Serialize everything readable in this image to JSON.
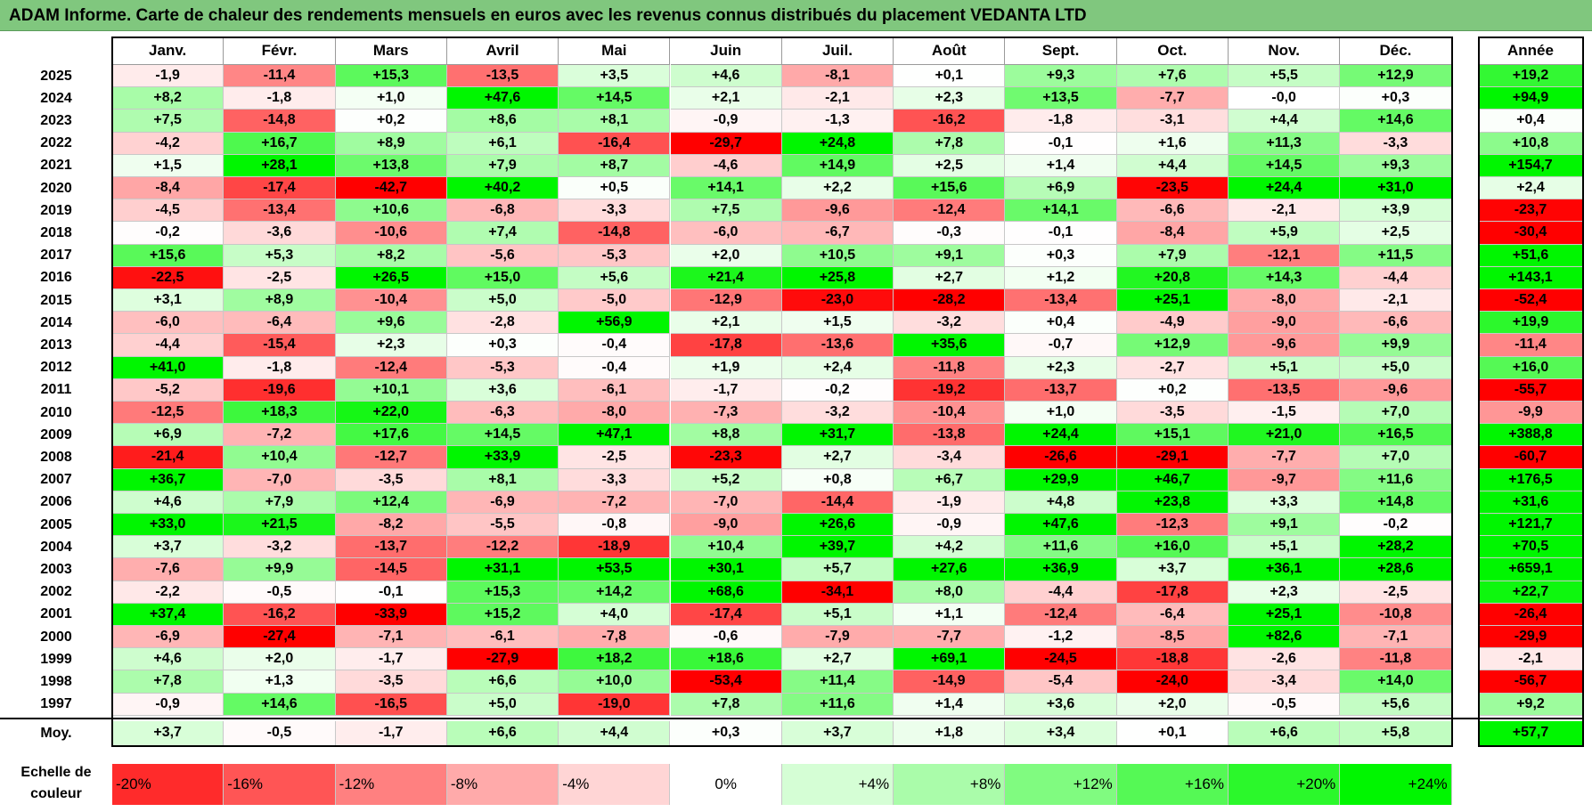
{
  "title": "ADAM Informe. Carte de chaleur des rendements mensuels en euros avec les revenus connus distribués du placement VEDANTA LTD",
  "year_header": "Année",
  "avg_label": "Moy.",
  "legend_title_line1": "Echelle de",
  "legend_title_line2": "couleur",
  "colors": {
    "max_red": "#ff0000",
    "max_green": "#00e600",
    "neutral": "#ffffff",
    "title_bg": "#80c77e"
  },
  "chart_data": {
    "type": "heatmap",
    "title": "ADAM Informe. Carte de chaleur des rendements mensuels en euros avec les revenus connus distribués du placement VEDANTA LTD",
    "months": [
      "Janv.",
      "Févr.",
      "Mars",
      "Avril",
      "Mai",
      "Juin",
      "Juil.",
      "Août",
      "Sept.",
      "Oct.",
      "Nov.",
      "Déc."
    ],
    "rows": [
      {
        "year": "2025",
        "values": [
          "-1,9",
          "-11,4",
          "+15,3",
          "-13,5",
          "+3,5",
          "+4,6",
          "-8,1",
          "+0,1",
          "+9,3",
          "+7,6",
          "+5,5",
          "+12,9"
        ],
        "annual": "+19,2"
      },
      {
        "year": "2024",
        "values": [
          "+8,2",
          "-1,8",
          "+1,0",
          "+47,6",
          "+14,5",
          "+2,1",
          "-2,1",
          "+2,3",
          "+13,5",
          "-7,7",
          "-0,0",
          "+0,3"
        ],
        "annual": "+94,9"
      },
      {
        "year": "2023",
        "values": [
          "+7,5",
          "-14,8",
          "+0,2",
          "+8,6",
          "+8,1",
          "-0,9",
          "-1,3",
          "-16,2",
          "-1,8",
          "-3,1",
          "+4,4",
          "+14,6"
        ],
        "annual": "+0,4"
      },
      {
        "year": "2022",
        "values": [
          "-4,2",
          "+16,7",
          "+8,9",
          "+6,1",
          "-16,4",
          "-29,7",
          "+24,8",
          "+7,8",
          "-0,1",
          "+1,6",
          "+11,3",
          "-3,3"
        ],
        "annual": "+10,8"
      },
      {
        "year": "2021",
        "values": [
          "+1,5",
          "+28,1",
          "+13,8",
          "+7,9",
          "+8,7",
          "-4,6",
          "+14,9",
          "+2,5",
          "+1,4",
          "+4,4",
          "+14,5",
          "+9,3"
        ],
        "annual": "+154,7"
      },
      {
        "year": "2020",
        "values": [
          "-8,4",
          "-17,4",
          "-42,7",
          "+40,2",
          "+0,5",
          "+14,1",
          "+2,2",
          "+15,6",
          "+6,9",
          "-23,5",
          "+24,4",
          "+31,0"
        ],
        "annual": "+2,4"
      },
      {
        "year": "2019",
        "values": [
          "-4,5",
          "-13,4",
          "+10,6",
          "-6,8",
          "-3,3",
          "+7,5",
          "-9,6",
          "-12,4",
          "+14,1",
          "-6,6",
          "-2,1",
          "+3,9"
        ],
        "annual": "-23,7"
      },
      {
        "year": "2018",
        "values": [
          "-0,2",
          "-3,6",
          "-10,6",
          "+7,4",
          "-14,8",
          "-6,0",
          "-6,7",
          "-0,3",
          "-0,1",
          "-8,4",
          "+5,9",
          "+2,5"
        ],
        "annual": "-30,4"
      },
      {
        "year": "2017",
        "values": [
          "+15,6",
          "+5,3",
          "+8,2",
          "-5,6",
          "-5,3",
          "+2,0",
          "+10,5",
          "+9,1",
          "+0,3",
          "+7,9",
          "-12,1",
          "+11,5"
        ],
        "annual": "+51,6"
      },
      {
        "year": "2016",
        "values": [
          "-22,5",
          "-2,5",
          "+26,5",
          "+15,0",
          "+5,6",
          "+21,4",
          "+25,8",
          "+2,7",
          "+1,2",
          "+20,8",
          "+14,3",
          "-4,4"
        ],
        "annual": "+143,1"
      },
      {
        "year": "2015",
        "values": [
          "+3,1",
          "+8,9",
          "-10,4",
          "+5,0",
          "-5,0",
          "-12,9",
          "-23,0",
          "-28,2",
          "-13,4",
          "+25,1",
          "-8,0",
          "-2,1"
        ],
        "annual": "-52,4"
      },
      {
        "year": "2014",
        "values": [
          "-6,0",
          "-6,4",
          "+9,6",
          "-2,8",
          "+56,9",
          "+2,1",
          "+1,5",
          "-3,2",
          "+0,4",
          "-4,9",
          "-9,0",
          "-6,6"
        ],
        "annual": "+19,9"
      },
      {
        "year": "2013",
        "values": [
          "-4,4",
          "-15,4",
          "+2,3",
          "+0,3",
          "-0,4",
          "-17,8",
          "-13,6",
          "+35,6",
          "-0,7",
          "+12,9",
          "-9,6",
          "+9,9"
        ],
        "annual": "-11,4"
      },
      {
        "year": "2012",
        "values": [
          "+41,0",
          "-1,8",
          "-12,4",
          "-5,3",
          "-0,4",
          "+1,9",
          "+2,4",
          "-11,8",
          "+2,3",
          "-2,7",
          "+5,1",
          "+5,0"
        ],
        "annual": "+16,0"
      },
      {
        "year": "2011",
        "values": [
          "-5,2",
          "-19,6",
          "+10,1",
          "+3,6",
          "-6,1",
          "-1,7",
          "-0,2",
          "-19,2",
          "-13,7",
          "+0,2",
          "-13,5",
          "-9,6"
        ],
        "annual": "-55,7"
      },
      {
        "year": "2010",
        "values": [
          "-12,5",
          "+18,3",
          "+22,0",
          "-6,3",
          "-8,0",
          "-7,3",
          "-3,2",
          "-10,4",
          "+1,0",
          "-3,5",
          "-1,5",
          "+7,0"
        ],
        "annual": "-9,9"
      },
      {
        "year": "2009",
        "values": [
          "+6,9",
          "-7,2",
          "+17,6",
          "+14,5",
          "+47,1",
          "+8,8",
          "+31,7",
          "-13,8",
          "+24,4",
          "+15,1",
          "+21,0",
          "+16,5"
        ],
        "annual": "+388,8"
      },
      {
        "year": "2008",
        "values": [
          "-21,4",
          "+10,4",
          "-12,7",
          "+33,9",
          "-2,5",
          "-23,3",
          "+2,7",
          "-3,4",
          "-26,6",
          "-29,1",
          "-7,7",
          "+7,0"
        ],
        "annual": "-60,7"
      },
      {
        "year": "2007",
        "values": [
          "+36,7",
          "-7,0",
          "-3,5",
          "+8,1",
          "-3,3",
          "+5,2",
          "+0,8",
          "+6,7",
          "+29,9",
          "+46,7",
          "-9,7",
          "+11,6"
        ],
        "annual": "+176,5"
      },
      {
        "year": "2006",
        "values": [
          "+4,6",
          "+7,9",
          "+12,4",
          "-6,9",
          "-7,2",
          "-7,0",
          "-14,4",
          "-1,9",
          "+4,8",
          "+23,8",
          "+3,3",
          "+14,8"
        ],
        "annual": "+31,6"
      },
      {
        "year": "2005",
        "values": [
          "+33,0",
          "+21,5",
          "-8,2",
          "-5,5",
          "-0,8",
          "-9,0",
          "+26,6",
          "-0,9",
          "+47,6",
          "-12,3",
          "+9,1",
          "-0,2"
        ],
        "annual": "+121,7"
      },
      {
        "year": "2004",
        "values": [
          "+3,7",
          "-3,2",
          "-13,7",
          "-12,2",
          "-18,9",
          "+10,4",
          "+39,7",
          "+4,2",
          "+11,6",
          "+16,0",
          "+5,1",
          "+28,2"
        ],
        "annual": "+70,5"
      },
      {
        "year": "2003",
        "values": [
          "-7,6",
          "+9,9",
          "-14,5",
          "+31,1",
          "+53,5",
          "+30,1",
          "+5,7",
          "+27,6",
          "+36,9",
          "+3,7",
          "+36,1",
          "+28,6"
        ],
        "annual": "+659,1"
      },
      {
        "year": "2002",
        "values": [
          "-2,2",
          "-0,5",
          "-0,1",
          "+15,3",
          "+14,2",
          "+68,6",
          "-34,1",
          "+8,0",
          "-4,4",
          "-17,8",
          "+2,3",
          "-2,5"
        ],
        "annual": "+22,7"
      },
      {
        "year": "2001",
        "values": [
          "+37,4",
          "-16,2",
          "-33,9",
          "+15,2",
          "+4,0",
          "-17,4",
          "+5,1",
          "+1,1",
          "-12,4",
          "-6,4",
          "+25,1",
          "-10,8"
        ],
        "annual": "-26,4"
      },
      {
        "year": "2000",
        "values": [
          "-6,9",
          "-27,4",
          "-7,1",
          "-6,1",
          "-7,8",
          "-0,6",
          "-7,9",
          "-7,7",
          "-1,2",
          "-8,5",
          "+82,6",
          "-7,1"
        ],
        "annual": "-29,9"
      },
      {
        "year": "1999",
        "values": [
          "+4,6",
          "+2,0",
          "-1,7",
          "-27,9",
          "+18,2",
          "+18,6",
          "+2,7",
          "+69,1",
          "-24,5",
          "-18,8",
          "-2,6",
          "-11,8"
        ],
        "annual": "-2,1"
      },
      {
        "year": "1998",
        "values": [
          "+7,8",
          "+1,3",
          "-3,5",
          "+6,6",
          "+10,0",
          "-53,4",
          "+11,4",
          "-14,9",
          "-5,4",
          "-24,0",
          "-3,4",
          "+14,0"
        ],
        "annual": "-56,7"
      },
      {
        "year": "1997",
        "values": [
          "-0,9",
          "+14,6",
          "-16,5",
          "+5,0",
          "-19,0",
          "+7,8",
          "+11,6",
          "+1,4",
          "+3,6",
          "+2,0",
          "-0,5",
          "+5,6"
        ],
        "annual": "+9,2"
      }
    ],
    "average": {
      "values": [
        "+3,7",
        "-0,5",
        "-1,7",
        "+6,6",
        "+4,4",
        "+0,3",
        "+3,7",
        "+1,8",
        "+3,4",
        "+0,1",
        "+6,6",
        "+5,8"
      ],
      "annual": "+57,7"
    },
    "legend": [
      {
        "label": "-20%",
        "value": -20,
        "align": "left"
      },
      {
        "label": "-16%",
        "value": -16,
        "align": "left"
      },
      {
        "label": "-12%",
        "value": -12,
        "align": "left"
      },
      {
        "label": "-8%",
        "value": -8,
        "align": "left"
      },
      {
        "label": "-4%",
        "value": -4,
        "align": "left"
      },
      {
        "label": "0%",
        "value": 0,
        "align": "center"
      },
      {
        "label": "+4%",
        "value": 4,
        "align": "right"
      },
      {
        "label": "+8%",
        "value": 8,
        "align": "right"
      },
      {
        "label": "+12%",
        "value": 12,
        "align": "right"
      },
      {
        "label": "+16%",
        "value": 16,
        "align": "right"
      },
      {
        "label": "+20%",
        "value": 20,
        "align": "right"
      },
      {
        "label": "+24%",
        "value": 24,
        "align": "right"
      }
    ]
  }
}
